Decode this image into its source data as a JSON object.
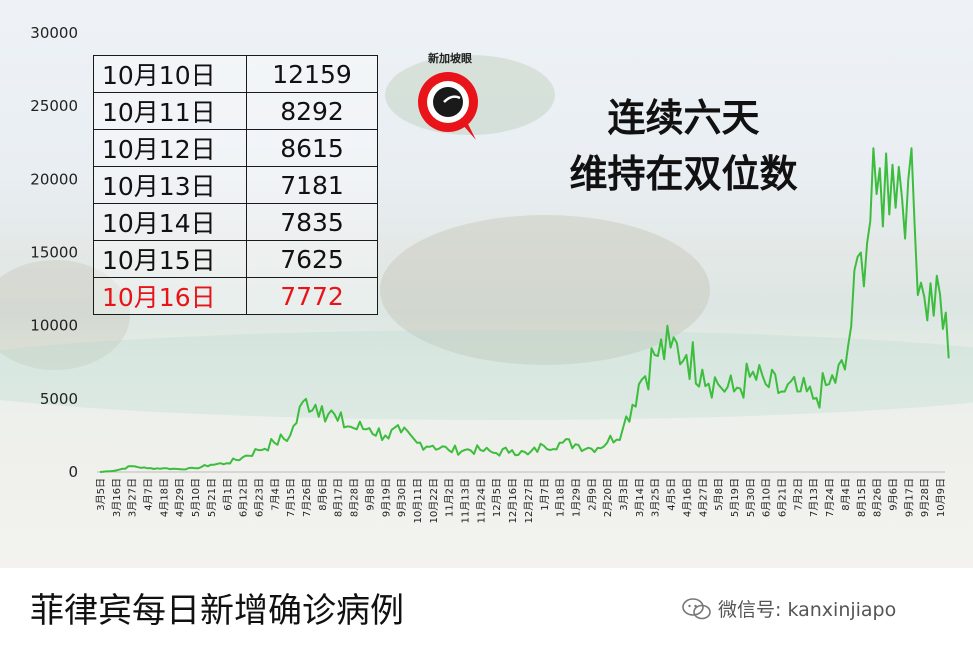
{
  "table": {
    "rows": [
      {
        "date": "10月10日",
        "value": "12159"
      },
      {
        "date": "10月11日",
        "value": "8292"
      },
      {
        "date": "10月12日",
        "value": "8615"
      },
      {
        "date": "10月13日",
        "value": "7181"
      },
      {
        "date": "10月14日",
        "value": "7835"
      },
      {
        "date": "10月15日",
        "value": "7625"
      },
      {
        "date": "10月16日",
        "value": "7772"
      }
    ],
    "highlight_color": "#e8141a"
  },
  "headline": {
    "line1": "连续六天",
    "line2": "维持在双位数"
  },
  "logo": {
    "text": "新加坡眼",
    "icon": "eye-magnifier-icon",
    "color": "#e8141a"
  },
  "caption": "菲律宾每日新增确诊病例",
  "watermark": {
    "icon": "wechat-icon",
    "text": "微信号: kanxinjiapo"
  },
  "chart_data": {
    "type": "line",
    "title": "",
    "xlabel": "",
    "ylabel": "",
    "ylim": [
      0,
      30000
    ],
    "yticks": [
      "0",
      "5000",
      "10000",
      "15000",
      "20000",
      "25000",
      "30000"
    ],
    "grid": false,
    "line_color": "#3dbd3d",
    "xticks": [
      "3月5日",
      "3月16日",
      "3月27日",
      "4月7日",
      "4月18日",
      "4月29日",
      "5月10日",
      "5月21日",
      "6月1日",
      "6月12日",
      "6月23日",
      "7月4日",
      "7月15日",
      "7月26日",
      "8月6日",
      "8月17日",
      "8月28日",
      "9月8日",
      "9月19日",
      "9月30日",
      "10月11日",
      "10月22日",
      "11月2日",
      "11月13日",
      "11月24日",
      "12月5日",
      "12月16日",
      "12月27日",
      "1月7日",
      "1月18日",
      "1月29日",
      "2月9日",
      "2月20日",
      "3月3日",
      "3月14日",
      "3月25日",
      "4月5日",
      "4月16日",
      "4月27日",
      "5月8日",
      "5月19日",
      "5月30日",
      "6月10日",
      "6月21日",
      "7月2日",
      "7月13日",
      "7月24日",
      "8月4日",
      "8月15日",
      "8月26日",
      "9月6日",
      "9月17日",
      "9月28日",
      "10月9日"
    ],
    "series": [
      {
        "x": [
          "3月5日",
          "3月16日",
          "3月27日",
          "4月7日",
          "4月18日",
          "4月29日",
          "5月10日",
          "5月21日",
          "6月1日",
          "6月12日",
          "6月23日",
          "7月4日",
          "7月15日",
          "7月26日",
          "8月6日",
          "8月17日",
          "8月28日",
          "9月8日",
          "9月19日",
          "9月30日",
          "10月11日",
          "10月22日",
          "11月2日",
          "11月13日",
          "11月24日",
          "12月5日",
          "12月16日",
          "12月27日",
          "1月7日",
          "1月18日",
          "1月29日",
          "2月9日",
          "2月20日",
          "3月3日",
          "3月14日",
          "3月25日",
          "4月5日",
          "4月16日",
          "4月27日",
          "5月8日",
          "5月19日",
          "5月30日",
          "6月10日",
          "6月21日",
          "7月2日",
          "7月13日",
          "7月24日",
          "8月4日",
          "8月15日",
          "8月26日",
          "9月6日",
          "9月17日",
          "9月28日",
          "10月9日",
          "10月16日"
        ],
        "values": [
          0,
          100,
          400,
          250,
          250,
          200,
          250,
          500,
          600,
          1000,
          1500,
          2000,
          2500,
          5000,
          4500,
          3500,
          3000,
          3000,
          2500,
          2700,
          2000,
          1800,
          1500,
          1500,
          1500,
          1300,
          1500,
          1200,
          1800,
          2000,
          1900,
          1600,
          2000,
          3000,
          6000,
          8000,
          8500,
          8000,
          7000,
          6000,
          5500,
          6500,
          6000,
          5500,
          5500,
          5000,
          6000,
          7000,
          15000,
          19000,
          21000,
          20000,
          12000,
          12159,
          7772
        ]
      }
    ]
  }
}
